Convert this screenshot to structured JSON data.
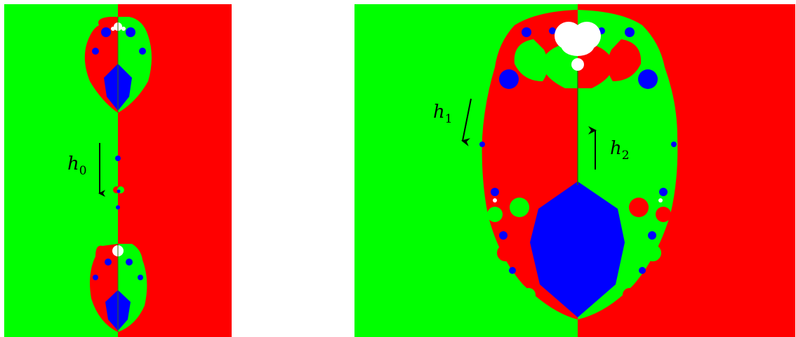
{
  "colors": {
    "green": "#00ff00",
    "red": "#ff0000",
    "blue": "#0000ff",
    "white": "#ffffff",
    "arrow": "#000000"
  },
  "left_panel": {
    "labels": {
      "h0": {
        "main": "h",
        "sub": "0"
      }
    }
  },
  "right_panel": {
    "labels": {
      "h1": {
        "main": "h",
        "sub": "1"
      },
      "h2": {
        "main": "h",
        "sub": "2"
      }
    }
  }
}
